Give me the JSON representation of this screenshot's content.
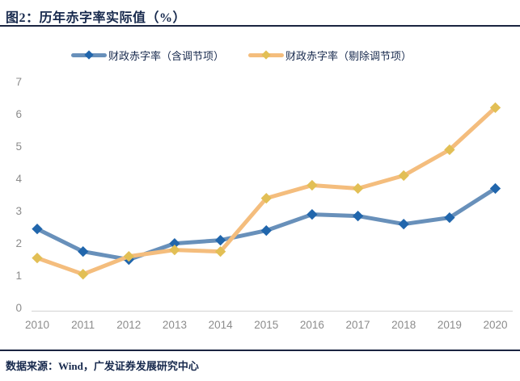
{
  "header": {
    "title": "图2：历年赤字率实际值（%）"
  },
  "footer": {
    "source": "数据来源：Wind，广发证券发展研究中心"
  },
  "colors": {
    "title_text": "#17294d",
    "rule_line": "#1a2440",
    "axis_label": "#8c8c8c",
    "axis_line": "#d9d9d9",
    "series1_line": "#6890ba",
    "series1_marker": "#2166ac",
    "series2_line": "#f4bd7d",
    "series2_marker": "#e2bf55"
  },
  "chart_data": {
    "type": "line",
    "title": "历年赤字率实际值（%）",
    "xlabel": "",
    "ylabel": "",
    "categories": [
      "2010",
      "2011",
      "2012",
      "2013",
      "2014",
      "2015",
      "2016",
      "2017",
      "2018",
      "2019",
      "2020"
    ],
    "series": [
      {
        "name": "财政赤字率（含调节项）",
        "color": "#6890ba",
        "marker_color": "#2166ac",
        "marker": "diamond",
        "values": [
          2.45,
          1.75,
          1.5,
          2.0,
          2.1,
          2.4,
          2.9,
          2.85,
          2.6,
          2.8,
          3.7
        ]
      },
      {
        "name": "财政赤字率（剔除调节项）",
        "color": "#f4bd7d",
        "marker_color": "#e2bf55",
        "marker": "diamond",
        "values": [
          1.55,
          1.05,
          1.6,
          1.8,
          1.75,
          3.4,
          3.8,
          3.7,
          4.1,
          4.9,
          6.2
        ]
      }
    ],
    "ylim": [
      0,
      7
    ],
    "ytick_step": 1,
    "yticks": [
      0,
      1,
      2,
      3,
      4,
      5,
      6,
      7
    ],
    "grid": false,
    "legend_position": "top"
  }
}
